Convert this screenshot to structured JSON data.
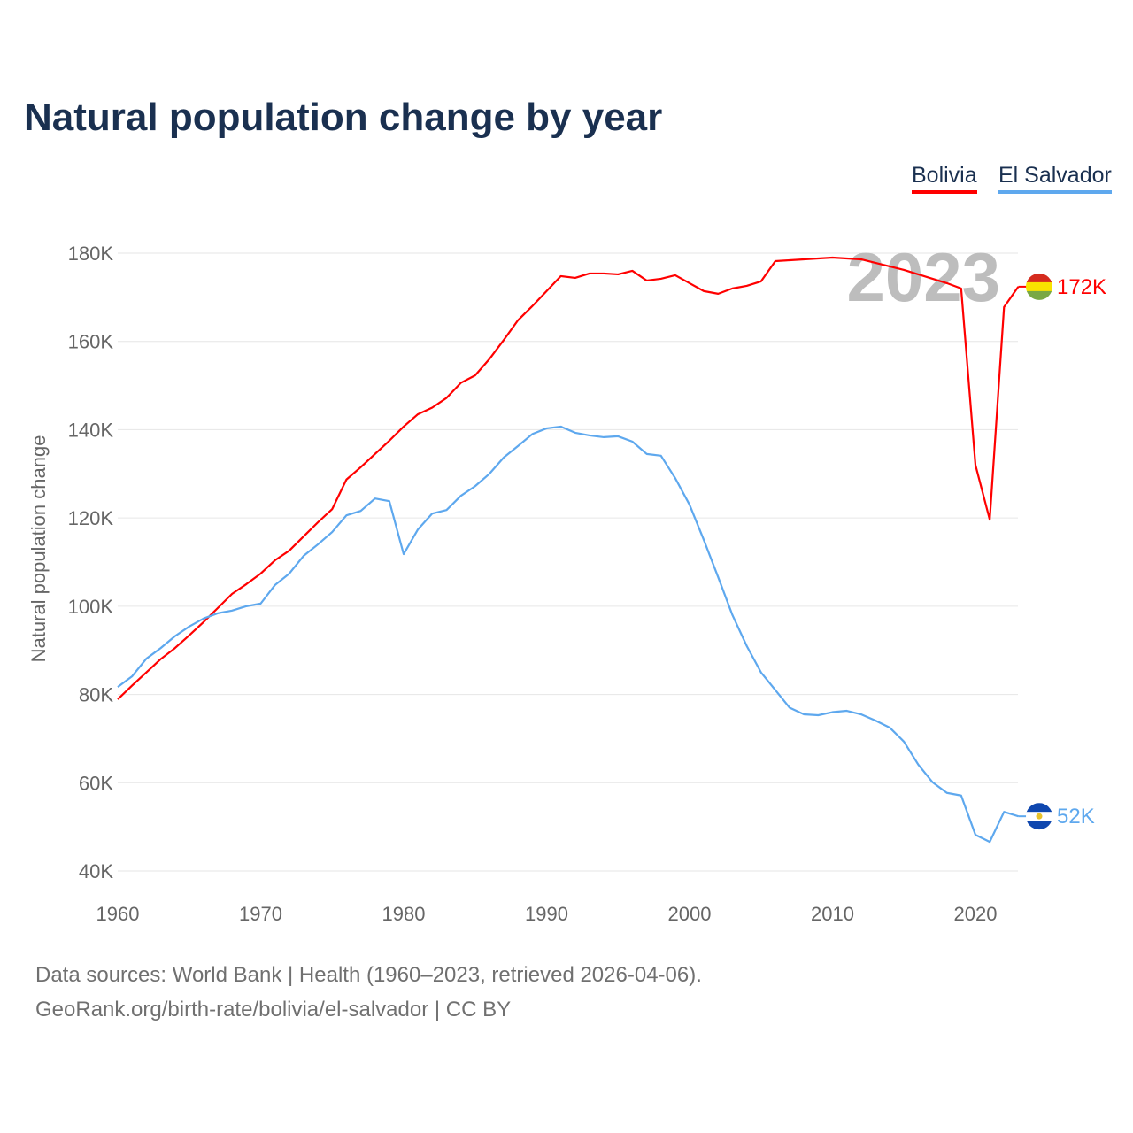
{
  "chart_data": {
    "type": "line",
    "title": "Natural population change by year",
    "xlabel": "",
    "ylabel": "Natural population change",
    "xlim": [
      1960,
      2023
    ],
    "ylim": [
      40000,
      180000
    ],
    "x_ticks": [
      1960,
      1970,
      1980,
      1990,
      2000,
      2010,
      2020
    ],
    "x_tick_labels": [
      "1960",
      "1970",
      "1980",
      "1990",
      "2000",
      "2010",
      "2020"
    ],
    "y_ticks": [
      40000,
      60000,
      80000,
      100000,
      120000,
      140000,
      160000,
      180000
    ],
    "y_tick_labels": [
      "40K",
      "60K",
      "80K",
      "100K",
      "120K",
      "140K",
      "160K",
      "180K"
    ],
    "grid": true,
    "legend_placement": "top-right",
    "year_watermark": "2023",
    "x": [
      1960,
      1961,
      1962,
      1963,
      1964,
      1965,
      1966,
      1967,
      1968,
      1969,
      1970,
      1971,
      1972,
      1973,
      1974,
      1975,
      1976,
      1977,
      1978,
      1979,
      1980,
      1981,
      1982,
      1983,
      1984,
      1985,
      1986,
      1987,
      1988,
      1989,
      1990,
      1991,
      1992,
      1993,
      1994,
      1995,
      1996,
      1997,
      1998,
      1999,
      2000,
      2001,
      2002,
      2003,
      2004,
      2005,
      2006,
      2007,
      2008,
      2009,
      2010,
      2011,
      2012,
      2013,
      2014,
      2015,
      2016,
      2017,
      2018,
      2019,
      2020,
      2021,
      2022,
      2023
    ],
    "series": [
      {
        "name": "Bolivia",
        "color": "#ff0000",
        "end_label": "172K",
        "flag": [
          "#d52b1e",
          "#f9e300",
          "#79a844"
        ],
        "values": [
          78900,
          82000,
          85000,
          88000,
          90500,
          93400,
          96400,
          99600,
          102800,
          105000,
          107400,
          110400,
          112600,
          115800,
          119000,
          122000,
          128700,
          131500,
          134500,
          137500,
          140700,
          143500,
          145000,
          147200,
          150600,
          152300,
          156000,
          160300,
          164800,
          168000,
          171400,
          174800,
          174400,
          175400,
          175400,
          175200,
          176000,
          173800,
          174200,
          175000,
          173200,
          171400,
          170800,
          172000,
          172600,
          173600,
          178200,
          178400,
          178600,
          178800,
          179000,
          178800,
          178600,
          177800,
          177000,
          176200,
          175200,
          174200,
          173200,
          172000,
          132000,
          119600,
          167800,
          172400
        ]
      },
      {
        "name": "El Salvador",
        "color": "#5ea8ee",
        "end_label": "52K",
        "flag": [
          "#0f47af",
          "#ffffff",
          "#0f47af"
        ],
        "values": [
          81700,
          84100,
          88100,
          90500,
          93200,
          95400,
          97200,
          98400,
          99000,
          100000,
          100600,
          104800,
          107400,
          111400,
          114000,
          116800,
          120600,
          121600,
          124400,
          123800,
          111800,
          117400,
          121000,
          121800,
          125000,
          127200,
          130000,
          133700,
          136300,
          139000,
          140300,
          140700,
          139300,
          138700,
          138300,
          138500,
          137300,
          134500,
          134100,
          129000,
          123000,
          115000,
          106600,
          98000,
          91000,
          85000,
          81000,
          77000,
          75500,
          75300,
          76000,
          76300,
          75500,
          74100,
          72500,
          69300,
          64100,
          60100,
          57700,
          57100,
          48200,
          46600,
          53400,
          52400
        ]
      }
    ]
  },
  "footer": {
    "source": "Data sources: World Bank | Health (1960–2023, retrieved 2026-04-06).",
    "link": "GeoRank.org/birth-rate/bolivia/el-salvador | CC BY"
  }
}
